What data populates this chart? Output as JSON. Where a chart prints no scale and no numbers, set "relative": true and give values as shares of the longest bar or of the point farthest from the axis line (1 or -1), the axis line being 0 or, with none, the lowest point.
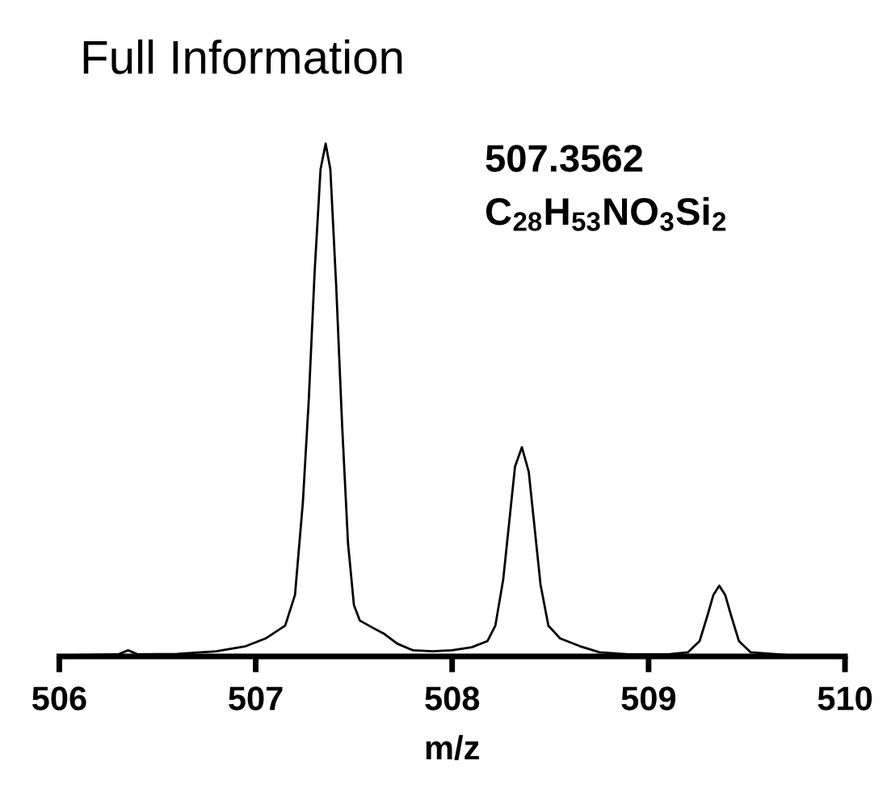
{
  "chart_data": {
    "type": "line",
    "title": "Full Information",
    "xlabel": "m/z",
    "relative": true,
    "tick_labels": "x",
    "xlim": [
      506,
      510
    ],
    "xticks": [
      506,
      507,
      508,
      509,
      510
    ],
    "grid": false,
    "legend": false,
    "marker": "none",
    "line_style": "solid",
    "annotations": [
      "507.3562",
      "C$_{28}$H$_{53}$NO$_{3}$Si$_{2}$"
    ],
    "series": [
      {
        "color": "#000000",
        "x": [
          506.0,
          506.3,
          506.35,
          506.4,
          506.6,
          506.8,
          506.95,
          507.05,
          507.15,
          507.2,
          507.24,
          507.27,
          507.3,
          507.33,
          507.356,
          507.38,
          507.41,
          507.44,
          507.47,
          507.5,
          507.53,
          507.6,
          507.65,
          507.72,
          507.8,
          507.9,
          508.0,
          508.1,
          508.18,
          508.22,
          508.26,
          508.29,
          508.32,
          508.355,
          508.39,
          508.42,
          508.45,
          508.49,
          508.55,
          508.65,
          508.75,
          508.9,
          509.1,
          509.2,
          509.26,
          509.3,
          509.33,
          509.36,
          509.39,
          509.42,
          509.46,
          509.52,
          509.7,
          510.0
        ],
        "values": [
          0.002,
          0.004,
          0.012,
          0.004,
          0.005,
          0.01,
          0.02,
          0.035,
          0.06,
          0.12,
          0.3,
          0.5,
          0.75,
          0.95,
          1.0,
          0.95,
          0.72,
          0.45,
          0.22,
          0.1,
          0.07,
          0.055,
          0.045,
          0.025,
          0.012,
          0.01,
          0.012,
          0.018,
          0.03,
          0.06,
          0.15,
          0.26,
          0.37,
          0.408,
          0.36,
          0.25,
          0.14,
          0.06,
          0.035,
          0.02,
          0.008,
          0.004,
          0.004,
          0.008,
          0.03,
          0.08,
          0.12,
          0.138,
          0.12,
          0.08,
          0.03,
          0.008,
          0.003,
          0.001
        ]
      }
    ]
  }
}
